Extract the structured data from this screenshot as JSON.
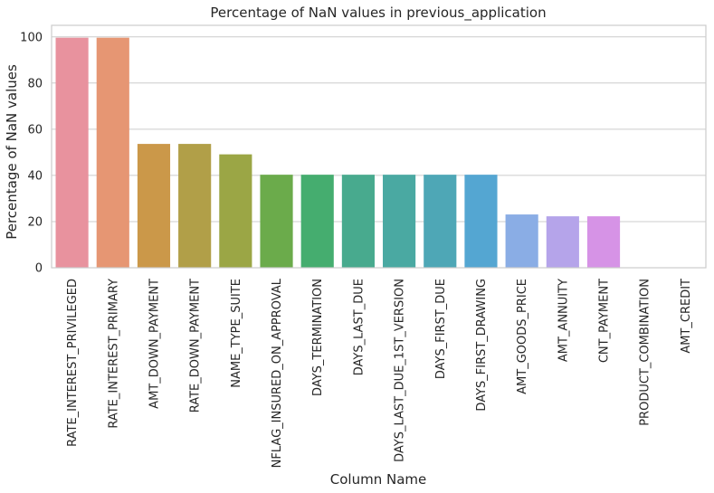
{
  "chart_data": {
    "type": "bar",
    "title": "Percentage of NaN values in previous_application",
    "xlabel": "Column Name",
    "ylabel": "Percentage of NaN values",
    "ylim": [
      0,
      105
    ],
    "yticks": [
      0,
      20,
      40,
      60,
      80,
      100
    ],
    "grid": true,
    "categories": [
      "RATE_INTEREST_PRIVILEGED",
      "RATE_INTEREST_PRIMARY",
      "AMT_DOWN_PAYMENT",
      "RATE_DOWN_PAYMENT",
      "NAME_TYPE_SUITE",
      "NFLAG_INSURED_ON_APPROVAL",
      "DAYS_TERMINATION",
      "DAYS_LAST_DUE",
      "DAYS_LAST_DUE_1ST_VERSION",
      "DAYS_FIRST_DUE",
      "DAYS_FIRST_DRAWING",
      "AMT_GOODS_PRICE",
      "AMT_ANNUITY",
      "CNT_PAYMENT",
      "PRODUCT_COMBINATION",
      "AMT_CREDIT"
    ],
    "values": [
      99.64,
      99.64,
      53.64,
      53.64,
      49.12,
      40.3,
      40.3,
      40.3,
      40.3,
      40.3,
      40.3,
      23.08,
      22.29,
      22.29,
      0.02,
      0.0001
    ],
    "colors": [
      "#e8929e",
      "#e69673",
      "#cb9849",
      "#b19f48",
      "#9ba645",
      "#6bab4b",
      "#45ad6f",
      "#48aa8e",
      "#4aa9a2",
      "#4ea7b6",
      "#54a6d2",
      "#8aade5",
      "#b5a4ea",
      "#d693e6",
      "#e88ed3",
      "#e890b6"
    ]
  }
}
